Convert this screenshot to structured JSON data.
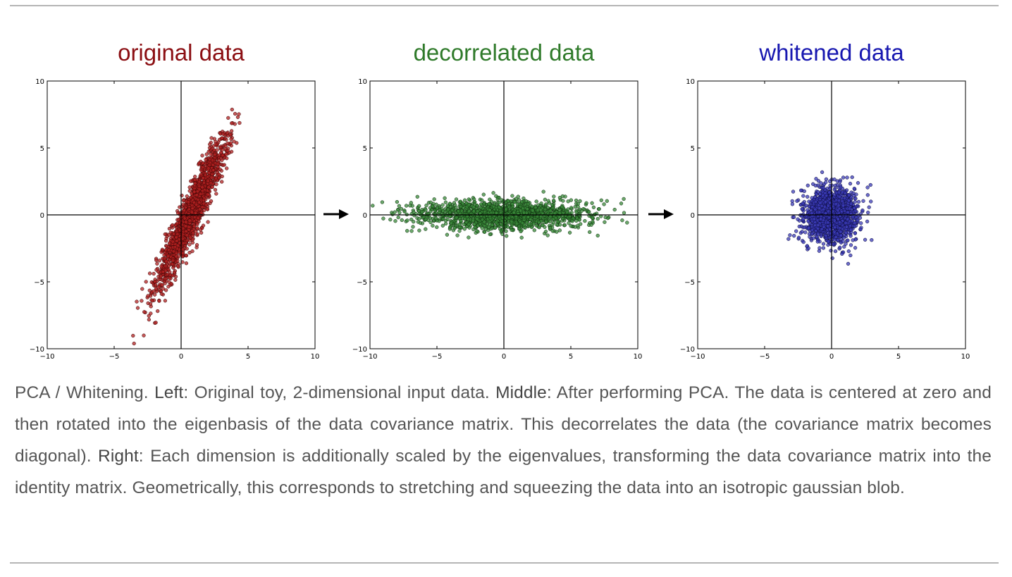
{
  "chart_data": [
    {
      "type": "scatter",
      "title": "original data",
      "title_color": "#8b0e12",
      "point_fill": "#b02020",
      "point_stroke": "#3a0505",
      "xlim": [
        -10,
        10
      ],
      "ylim": [
        -10,
        10
      ],
      "xticks": [
        "−10",
        "−5",
        "0",
        "5",
        "10"
      ],
      "yticks": [
        "10",
        "5",
        "0",
        "−5",
        "−10"
      ],
      "tick_values": [
        -10,
        -5,
        0,
        5,
        10
      ],
      "distribution": {
        "n": 1500,
        "cov": [
          [
            1.9,
            3.8
          ],
          [
            3.8,
            8.6
          ]
        ],
        "center": [
          0.8,
          0.2
        ]
      },
      "axes_lines_at_zero": true
    },
    {
      "type": "scatter",
      "title": "decorrelated data",
      "title_color": "#2f7a2a",
      "point_fill": "#3a8a3a",
      "point_stroke": "#0b2b0b",
      "xlim": [
        -10,
        10
      ],
      "ylim": [
        -10,
        10
      ],
      "xticks": [
        "−10",
        "−5",
        "0",
        "5",
        "10"
      ],
      "yticks": [
        "10",
        "5",
        "0",
        "−5",
        "−10"
      ],
      "tick_values": [
        -10,
        -5,
        0,
        5,
        10
      ],
      "distribution": {
        "n": 1500,
        "cov": [
          [
            10.3,
            0
          ],
          [
            0,
            0.3
          ]
        ],
        "center": [
          0,
          0
        ]
      },
      "axes_lines_at_zero": true
    },
    {
      "type": "scatter",
      "title": "whitened data",
      "title_color": "#1717b0",
      "point_fill": "#3b3bb8",
      "point_stroke": "#0a0a3a",
      "xlim": [
        -10,
        10
      ],
      "ylim": [
        -10,
        10
      ],
      "xticks": [
        "−10",
        "−5",
        "0",
        "5",
        "10"
      ],
      "yticks": [
        "10",
        "5",
        "0",
        "−5",
        "−10"
      ],
      "tick_values": [
        -10,
        -5,
        0,
        5,
        10
      ],
      "distribution": {
        "n": 1500,
        "cov": [
          [
            1,
            0
          ],
          [
            0,
            1
          ]
        ],
        "center": [
          0,
          0
        ]
      },
      "axes_lines_at_zero": true
    }
  ],
  "caption": {
    "intro": "PCA / Whitening. ",
    "left_label": "Left",
    "left_text": ": Original toy, 2-dimensional input data. ",
    "middle_label": "Middle",
    "middle_text": ": After performing PCA. The data is centered at zero and then rotated into the eigenbasis of the data covariance matrix. This decorrelates the data (the covariance matrix becomes diagonal). ",
    "right_label": "Right",
    "right_text": ": Each dimension is additionally scaled by the eigenvalues, transforming the data covariance matrix into the identity matrix. Geometrically, this corresponds to stretching and squeezing the data into an isotropic gaussian blob."
  }
}
